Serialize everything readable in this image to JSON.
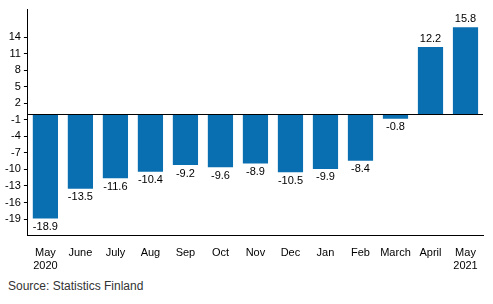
{
  "chart_data": {
    "type": "bar",
    "categories": [
      "May 2020",
      "June",
      "July",
      "Aug",
      "Sep",
      "Oct",
      "Nov",
      "Dec",
      "Jan",
      "Feb",
      "March",
      "April",
      "May 2021"
    ],
    "values": [
      -18.9,
      -13.5,
      -11.6,
      -10.4,
      -9.2,
      -9.6,
      -8.9,
      -10.5,
      -9.9,
      -8.4,
      -0.8,
      12.2,
      15.8
    ],
    "color": "#0a6fb0",
    "ylim": [
      -22,
      19
    ],
    "yticks": [
      -19,
      -16,
      -13,
      -10,
      -7,
      -4,
      -1,
      2,
      5,
      8,
      11,
      14
    ],
    "grid": false,
    "data_labels": true,
    "source": "Source: Statistics Finland"
  }
}
